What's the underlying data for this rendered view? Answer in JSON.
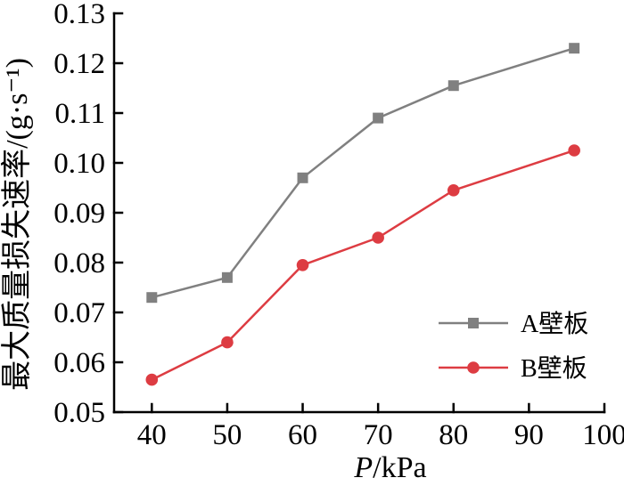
{
  "figure": {
    "background": "#ffffff",
    "axis_color": "#000000"
  },
  "chart_data": {
    "type": "line",
    "title": "",
    "xlabel": "P/kPa",
    "xlabel_italic": "P",
    "xlabel_rest": "/kPa",
    "ylabel": "最大质量损失速率/(g·s⁻¹)",
    "xlim": [
      35,
      100
    ],
    "ylim": [
      0.05,
      0.13
    ],
    "xticks": [
      40,
      50,
      60,
      70,
      80,
      90,
      100
    ],
    "yticks": [
      0.05,
      0.06,
      0.07,
      0.08,
      0.09,
      0.1,
      0.11,
      0.12,
      0.13
    ],
    "grid": false,
    "legend_position": "lower-right",
    "x": [
      40,
      50,
      60,
      70,
      80,
      96
    ],
    "series": [
      {
        "name": "A壁板",
        "color": "#808080",
        "marker": "square",
        "values": [
          0.073,
          0.077,
          0.097,
          0.109,
          0.1155,
          0.123
        ]
      },
      {
        "name": "B壁板",
        "color": "#dd3c42",
        "marker": "circle",
        "values": [
          0.0565,
          0.064,
          0.0795,
          0.085,
          0.0945,
          0.1025
        ]
      }
    ]
  }
}
